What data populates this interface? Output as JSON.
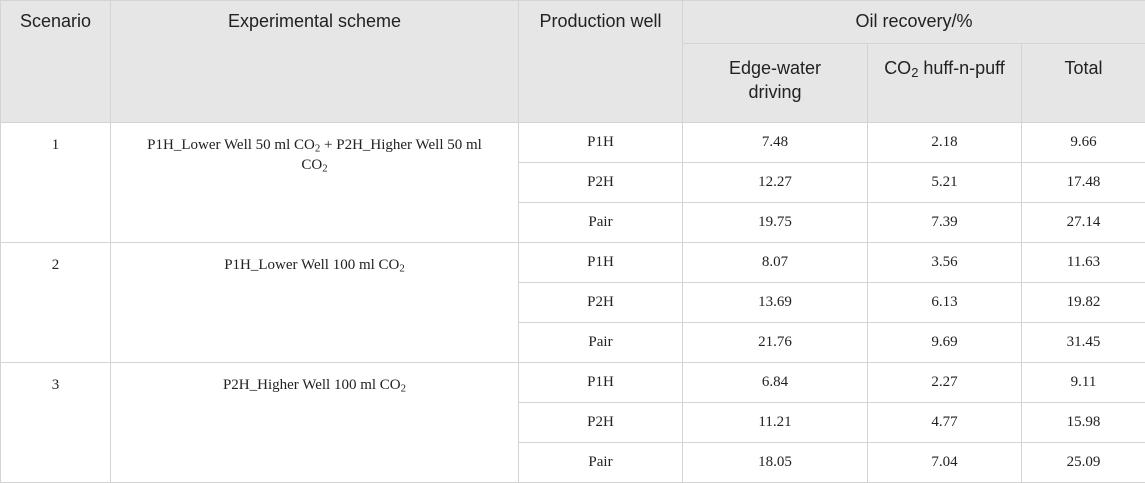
{
  "header": {
    "scenario": "Scenario",
    "scheme": "Experimental scheme",
    "well": "Production well",
    "oil_recovery": "Oil recovery/%",
    "edge_water": "Edge-water driving",
    "huff_pre": "CO",
    "huff_sub": "2",
    "huff_post": " huff-n-puff",
    "total": "Total"
  },
  "scenarios": [
    {
      "id": "1",
      "scheme": [
        {
          "t": "P1H_Lower Well 50 ml CO"
        },
        {
          "sub": "2"
        },
        {
          "t": " + P2H_Higher Well 50 ml CO"
        },
        {
          "sub": "2"
        }
      ],
      "rows": [
        {
          "well": "P1H",
          "edge": "7.48",
          "huff": "2.18",
          "total": "9.66"
        },
        {
          "well": "P2H",
          "edge": "12.27",
          "huff": "5.21",
          "total": "17.48"
        },
        {
          "well": "Pair",
          "edge": "19.75",
          "huff": "7.39",
          "total": "27.14"
        }
      ]
    },
    {
      "id": "2",
      "scheme": [
        {
          "t": "P1H_Lower Well 100 ml CO"
        },
        {
          "sub": "2"
        }
      ],
      "rows": [
        {
          "well": "P1H",
          "edge": "8.07",
          "huff": "3.56",
          "total": "11.63"
        },
        {
          "well": "P2H",
          "edge": "13.69",
          "huff": "6.13",
          "total": "19.82"
        },
        {
          "well": "Pair",
          "edge": "21.76",
          "huff": "9.69",
          "total": "31.45"
        }
      ]
    },
    {
      "id": "3",
      "scheme": [
        {
          "t": "P2H_Higher Well 100 ml CO"
        },
        {
          "sub": "2"
        }
      ],
      "rows": [
        {
          "well": "P1H",
          "edge": "6.84",
          "huff": "2.27",
          "total": "9.11"
        },
        {
          "well": "P2H",
          "edge": "11.21",
          "huff": "4.77",
          "total": "15.98"
        },
        {
          "well": "Pair",
          "edge": "18.05",
          "huff": "7.04",
          "total": "25.09"
        }
      ]
    }
  ]
}
